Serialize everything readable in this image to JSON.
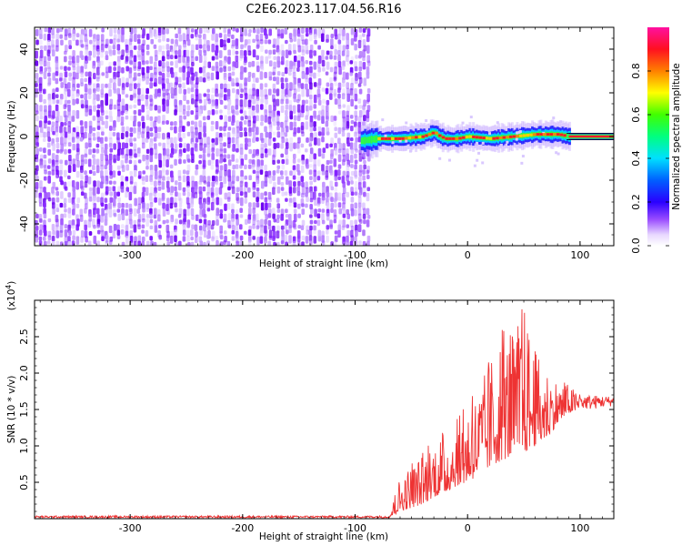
{
  "title": "C2E6.2023.117.04.56.R16",
  "chart_data": [
    {
      "type": "heatmap",
      "xlabel": "Height of straight line (km)",
      "ylabel": "Frequency (Hz)",
      "xlim": [
        -385,
        130
      ],
      "ylim": [
        -50,
        50
      ],
      "xticks": [
        -300,
        -200,
        -100,
        0,
        100
      ],
      "yticks": [
        -40,
        -20,
        0,
        20,
        40
      ],
      "noise_region_x": [
        -385,
        -90
      ],
      "signal_band": {
        "x": [
          -95,
          -80,
          -60,
          -40,
          -30,
          -25,
          -20,
          -10,
          0,
          20,
          40,
          60,
          80,
          90,
          130
        ],
        "center_hz": [
          -2,
          -1,
          -1,
          0,
          2,
          0,
          -1,
          -1,
          0,
          -1,
          0,
          1,
          1,
          0,
          0
        ]
      },
      "colorbar": {
        "label": "Normalized spectral amplitude",
        "ticks": [
          0.0,
          0.2,
          0.4,
          0.6,
          0.8
        ],
        "range": [
          0,
          1
        ]
      }
    },
    {
      "type": "line",
      "xlabel": "Height of straight line (km)",
      "ylabel": "SNR (10 * v/v)",
      "y_multiplier": "(x10",
      "y_multiplier_exp": "4",
      "y_multiplier_close": ")",
      "xlim": [
        -385,
        130
      ],
      "ylim": [
        0,
        3.0
      ],
      "xticks": [
        -300,
        -200,
        -100,
        0,
        100
      ],
      "yticks": [
        0.5,
        1.0,
        1.5,
        2.0,
        2.5
      ],
      "series": [
        {
          "color": "#ee3333",
          "envelope": {
            "x": [
              -385,
              -70,
              -65,
              -60,
              -50,
              -40,
              -30,
              -20,
              -10,
              0,
              10,
              20,
              30,
              40,
              50,
              60,
              70,
              80,
              90,
              100,
              110,
              130
            ],
            "low": [
              0.01,
              0.01,
              0.05,
              0.1,
              0.15,
              0.2,
              0.3,
              0.35,
              0.45,
              0.5,
              0.6,
              0.7,
              0.8,
              0.85,
              0.9,
              1.0,
              1.1,
              1.3,
              1.45,
              1.5,
              1.5,
              1.55
            ],
            "high": [
              0.04,
              0.04,
              0.3,
              0.6,
              0.75,
              0.9,
              1.1,
              1.2,
              1.35,
              1.6,
              1.8,
              2.2,
              2.6,
              2.5,
              2.95,
              2.3,
              2.1,
              1.9,
              1.85,
              1.7,
              1.7,
              1.68
            ]
          }
        }
      ]
    }
  ],
  "colors": {
    "frame": "#000000",
    "snr_line": "#ee3333"
  }
}
